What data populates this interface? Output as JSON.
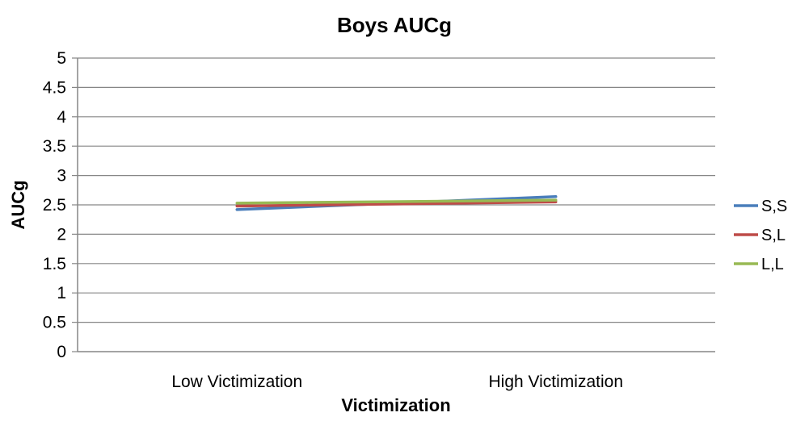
{
  "chart_data": {
    "type": "line",
    "title": "Boys AUCg",
    "xlabel": "Victimization",
    "ylabel": "AUCg",
    "categories": [
      "Low Victimization",
      "High Victimization"
    ],
    "ylim": [
      0,
      5
    ],
    "yticks": [
      "0",
      "0.5",
      "1",
      "1.5",
      "2",
      "2.5",
      "3",
      "3.5",
      "4",
      "4.5",
      "5"
    ],
    "grid": true,
    "legend_position": "right",
    "series": [
      {
        "name": "S,S",
        "color": "#4a7ebb",
        "values": [
          2.42,
          2.64
        ]
      },
      {
        "name": "S,L",
        "color": "#be4b48",
        "values": [
          2.48,
          2.55
        ]
      },
      {
        "name": "L,L",
        "color": "#98b954",
        "values": [
          2.53,
          2.58
        ]
      }
    ]
  }
}
